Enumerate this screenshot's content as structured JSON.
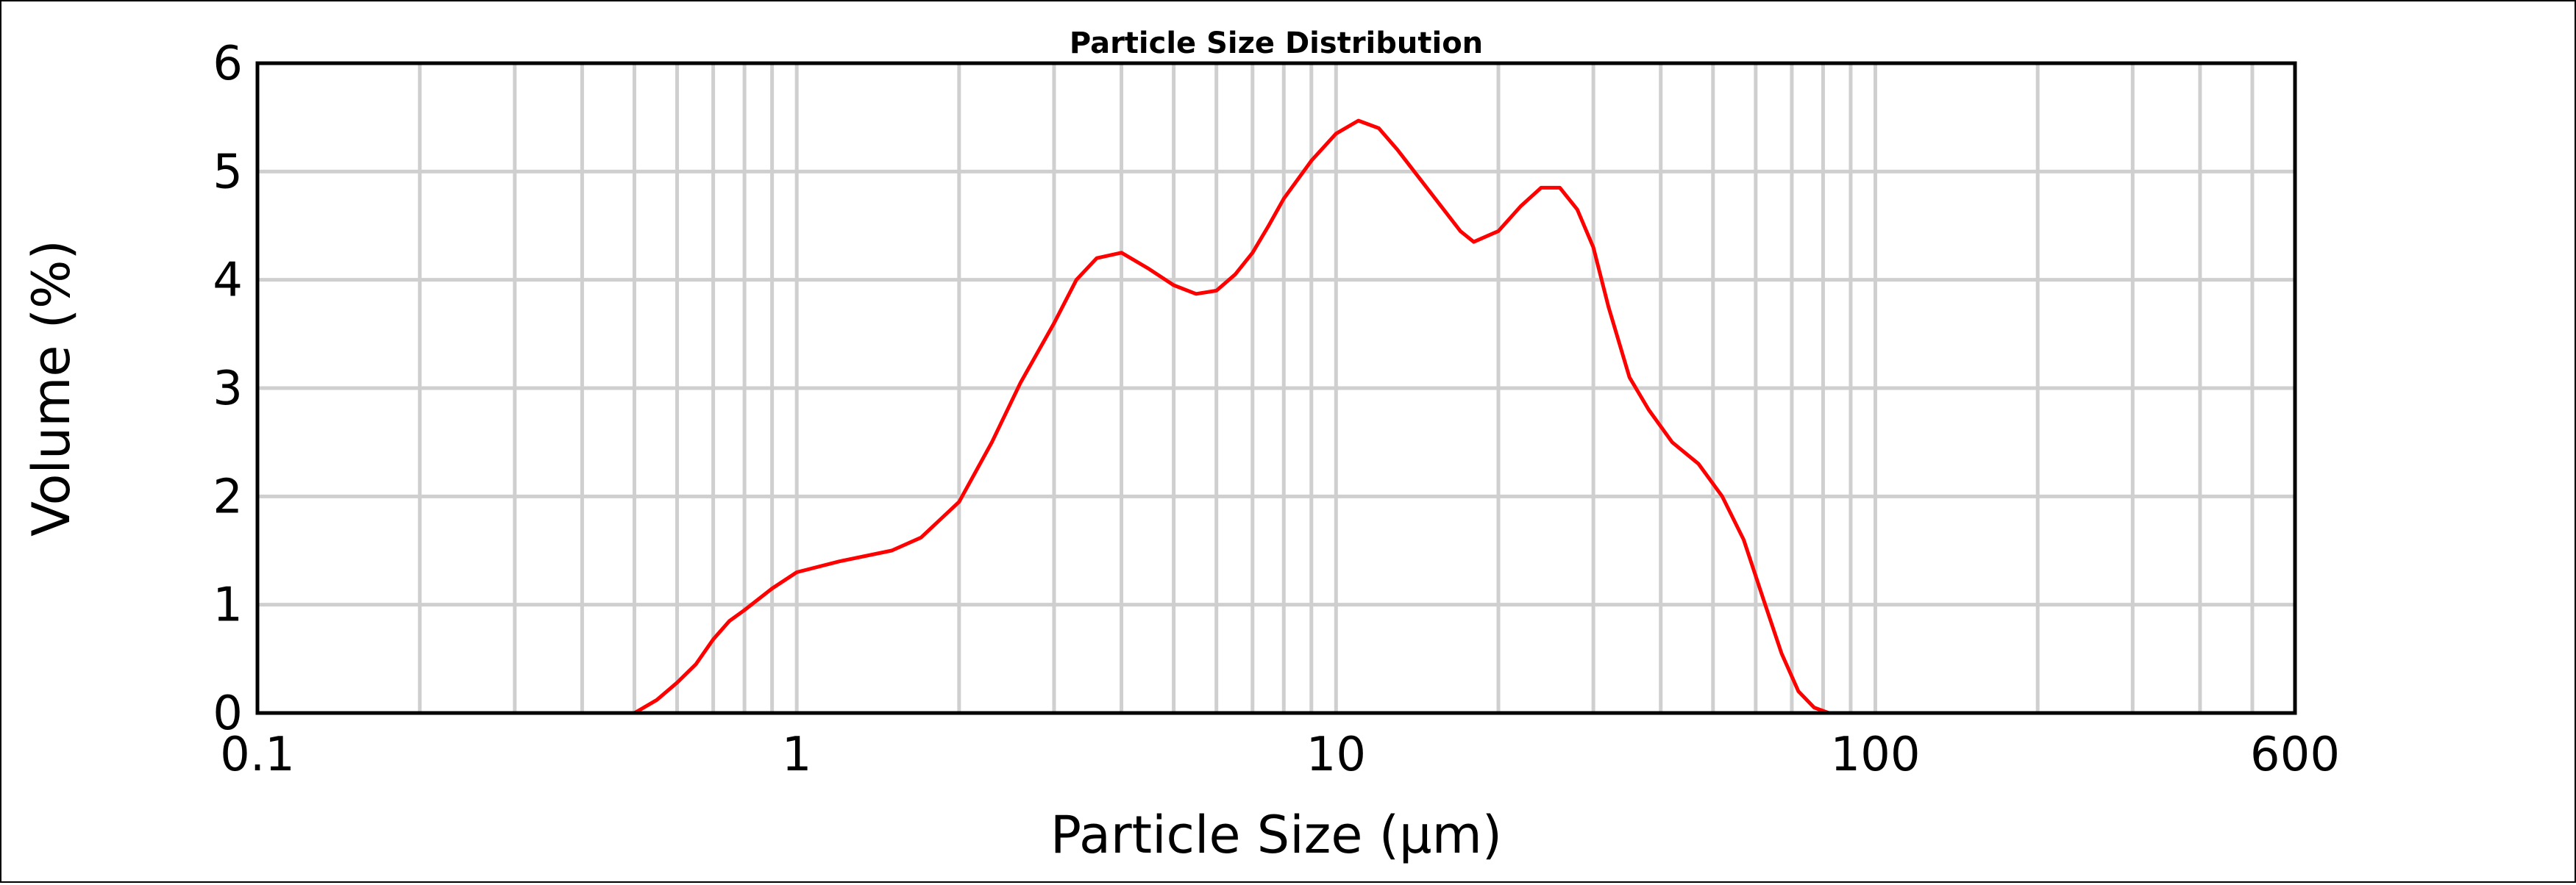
{
  "chart_data": {
    "type": "line",
    "title": "Particle Size Distribution",
    "xlabel": "Particle Size (μm)",
    "ylabel": "Volume (%)",
    "x_scale": "log",
    "xlim": [
      0.1,
      600
    ],
    "ylim": [
      0,
      6
    ],
    "x_ticks": [
      "0.1",
      "1",
      "10",
      "100",
      "600"
    ],
    "y_ticks": [
      "0",
      "1",
      "2",
      "3",
      "4",
      "5",
      "6"
    ],
    "grid": true,
    "line_color": "#ff0000",
    "series": [
      {
        "x": [
          0.1,
          0.2,
          0.3,
          0.4,
          0.5,
          0.55,
          0.6,
          0.65,
          0.7,
          0.75,
          0.8,
          0.9,
          1.0,
          1.2,
          1.5,
          1.7,
          2.0,
          2.3,
          2.6,
          3.0,
          3.3,
          3.6,
          4.0,
          4.5,
          5.0,
          5.5,
          6.0,
          6.5,
          7.0,
          7.5,
          8.0,
          9.0,
          10.0,
          11.0,
          12.0,
          13.0,
          15.0,
          17.0,
          18.0,
          20.0,
          22.0,
          24.0,
          26.0,
          28.0,
          30.0,
          32.0,
          35.0,
          38.0,
          42.0,
          47.0,
          52.0,
          57.0,
          62.0,
          67.0,
          72.0,
          77.0,
          82.0,
          85.0,
          100.0,
          200.0,
          300.0,
          400.0,
          600.0
        ],
        "y": [
          0,
          0,
          0,
          0,
          0,
          0.12,
          0.28,
          0.45,
          0.68,
          0.85,
          0.95,
          1.15,
          1.3,
          1.4,
          1.5,
          1.62,
          1.95,
          2.5,
          3.05,
          3.6,
          4.0,
          4.2,
          4.25,
          4.1,
          3.95,
          3.87,
          3.9,
          4.05,
          4.25,
          4.5,
          4.75,
          5.1,
          5.35,
          5.47,
          5.4,
          5.2,
          4.8,
          4.45,
          4.35,
          4.45,
          4.68,
          4.85,
          4.85,
          4.65,
          4.3,
          3.75,
          3.1,
          2.8,
          2.5,
          2.3,
          2.0,
          1.6,
          1.05,
          0.55,
          0.2,
          0.05,
          0,
          0,
          0,
          0,
          0,
          0,
          0
        ]
      }
    ]
  }
}
